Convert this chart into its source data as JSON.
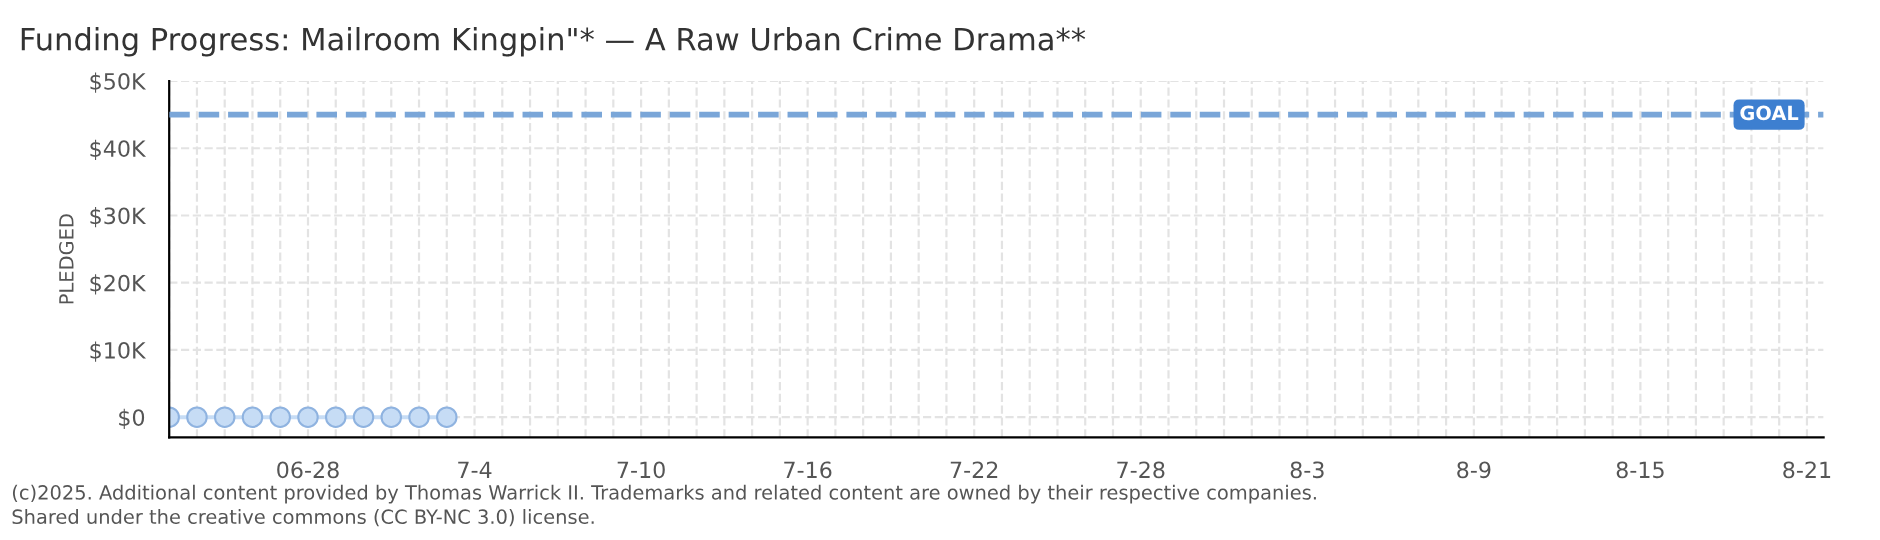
{
  "chart_data": {
    "type": "line",
    "title": "Funding Progress: Mailroom Kingpin\"* — A Raw Urban Crime Drama**",
    "ylabel": "PLEDGED",
    "x": [
      "2025-06-23",
      "2025-06-24",
      "2025-06-25",
      "2025-06-26",
      "2025-06-27",
      "2025-06-28",
      "2025-06-29",
      "2025-06-30",
      "2025-07-01",
      "2025-07-02",
      "2025-07-03"
    ],
    "series": [
      {
        "color": "#c6dcf5",
        "values": [
          0,
          0,
          0,
          0,
          0,
          0,
          0,
          0,
          0,
          0,
          0
        ]
      }
    ],
    "marker": "circle",
    "grid": true,
    "legend": false,
    "xlim": [
      "2025-06-23",
      "2025-08-21"
    ],
    "xticks": [
      {
        "value": "2025-06-28",
        "label": "06-28"
      },
      {
        "value": "2025-07-04",
        "label": "7-4"
      },
      {
        "value": "2025-07-10",
        "label": "7-10"
      },
      {
        "value": "2025-07-16",
        "label": "7-16"
      },
      {
        "value": "2025-07-22",
        "label": "7-22"
      },
      {
        "value": "2025-07-28",
        "label": "7-28"
      },
      {
        "value": "2025-08-03",
        "label": "8-3"
      },
      {
        "value": "2025-08-09",
        "label": "8-9"
      },
      {
        "value": "2025-08-15",
        "label": "8-15"
      },
      {
        "value": "2025-08-21",
        "label": "8-21"
      }
    ],
    "ylim": [
      -3000,
      50000
    ],
    "yticks": [
      {
        "value": 0,
        "label": "$0"
      },
      {
        "value": 10000,
        "label": "$10K"
      },
      {
        "value": 20000,
        "label": "$20K"
      },
      {
        "value": 30000,
        "label": "$30K"
      },
      {
        "value": 40000,
        "label": "$40K"
      },
      {
        "value": 50000,
        "label": "$50K"
      }
    ],
    "ref_lines": [
      {
        "axis": "y",
        "value": 45000,
        "label": "GOAL",
        "color": "#7aa6d8",
        "line_style": "dashed"
      }
    ],
    "annotations": [
      "(c)2025. Additional content provided by Thomas Warrick II. Trademarks and related content are owned by their respective companies.",
      "Shared under the creative commons (CC BY-NC 3.0) license."
    ]
  }
}
